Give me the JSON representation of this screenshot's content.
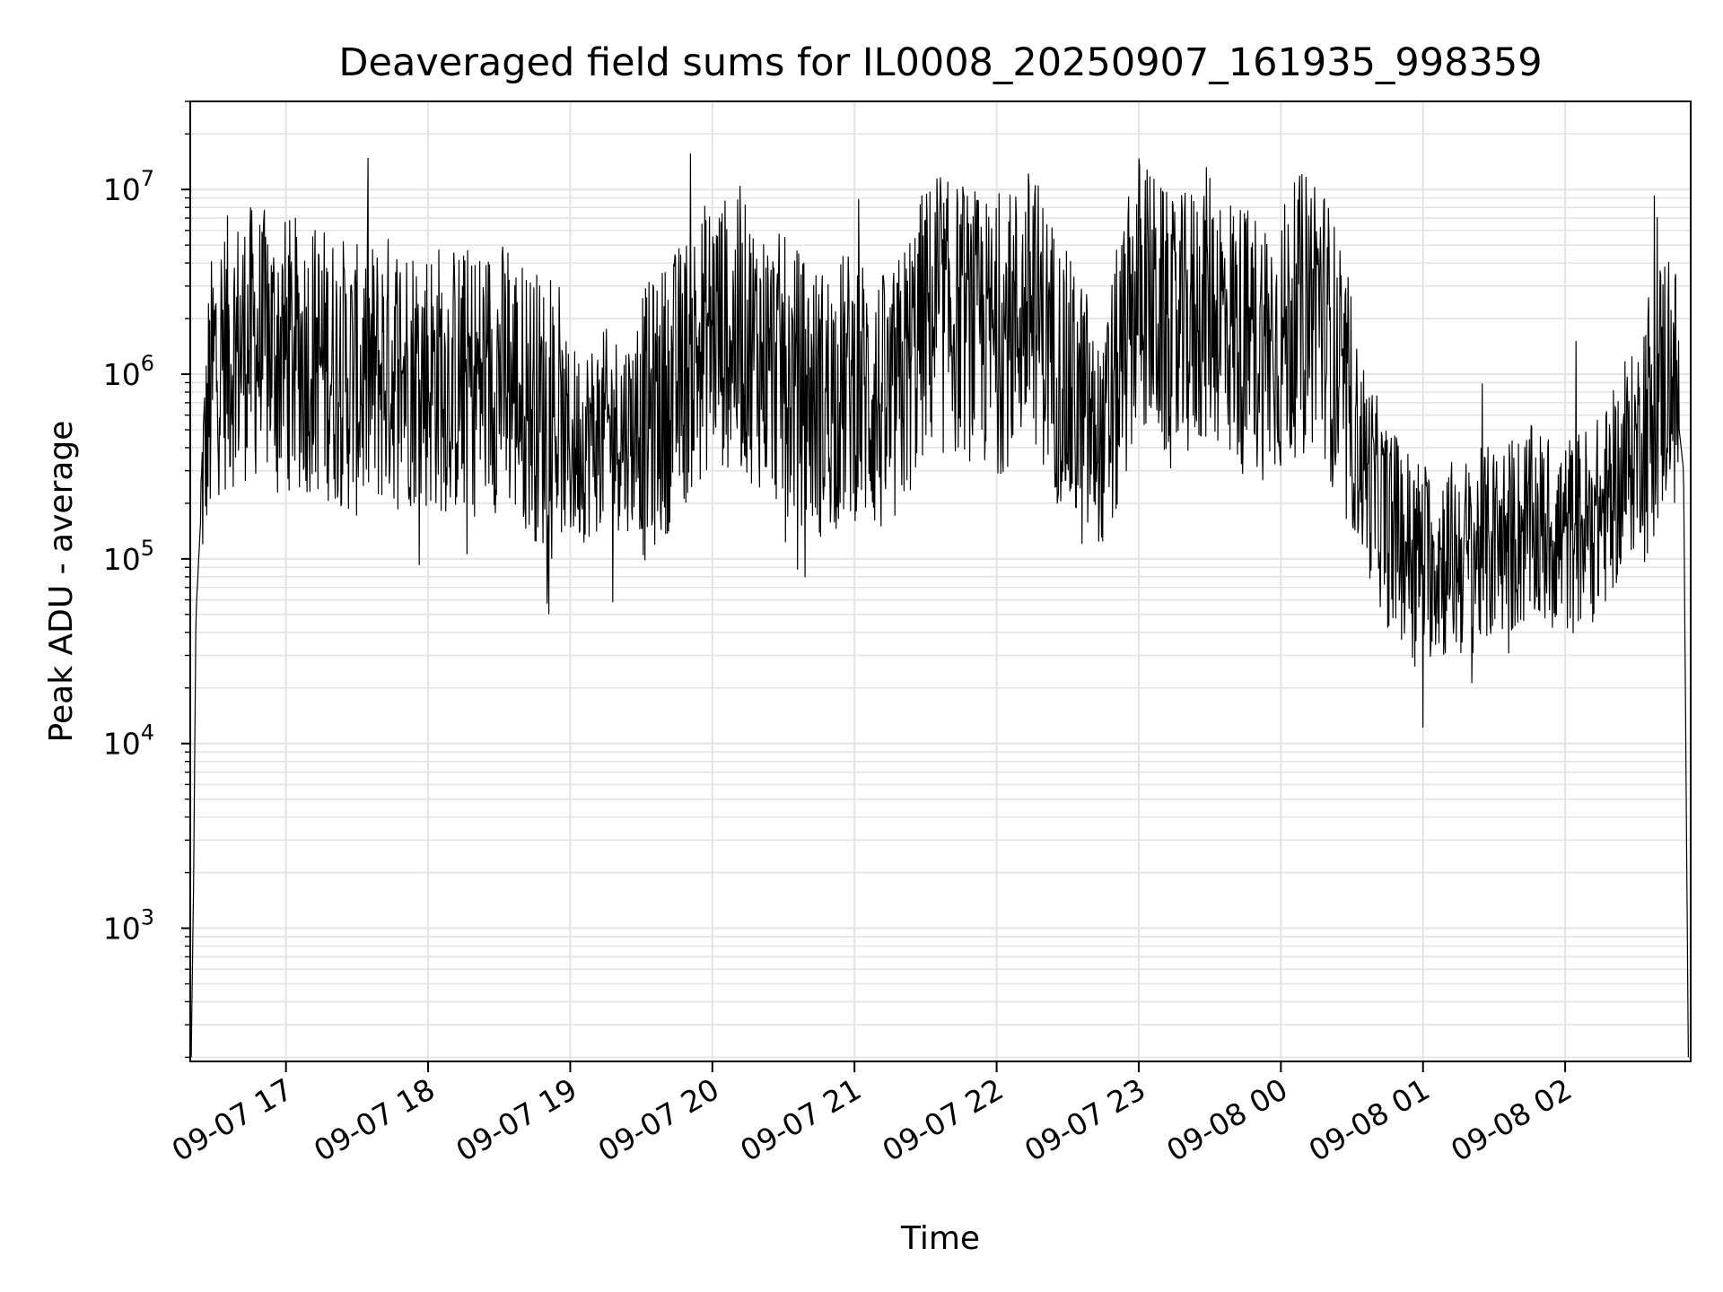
{
  "chart_data": {
    "type": "line",
    "title": "Deaveraged field sums for IL0008_20250907_161935_998359",
    "xlabel": "Time",
    "ylabel": "Peak ADU - average",
    "yscale": "log",
    "ylim": [
      190,
      30000000
    ],
    "xlim": [
      "2025-09-07 16:19:35",
      "2025-09-08 02:53:00"
    ],
    "grid": "on",
    "line_color": "#000000",
    "y_ticks": [
      {
        "value": 1000,
        "base": "10",
        "exp": "3"
      },
      {
        "value": 10000,
        "base": "10",
        "exp": "4"
      },
      {
        "value": 100000,
        "base": "10",
        "exp": "5"
      },
      {
        "value": 1000000,
        "base": "10",
        "exp": "6"
      },
      {
        "value": 10000000,
        "base": "10",
        "exp": "7"
      }
    ],
    "x_ticks": [
      {
        "time": "2025-09-07 17:00",
        "label": "09-07 17"
      },
      {
        "time": "2025-09-07 18:00",
        "label": "09-07 18"
      },
      {
        "time": "2025-09-07 19:00",
        "label": "09-07 19"
      },
      {
        "time": "2025-09-07 20:00",
        "label": "09-07 20"
      },
      {
        "time": "2025-09-07 21:00",
        "label": "09-07 21"
      },
      {
        "time": "2025-09-07 22:00",
        "label": "09-07 22"
      },
      {
        "time": "2025-09-07 23:00",
        "label": "09-07 23"
      },
      {
        "time": "2025-09-08 00:00",
        "label": "09-08 00"
      },
      {
        "time": "2025-09-08 01:00",
        "label": "09-08 01"
      },
      {
        "time": "2025-09-08 02:00",
        "label": "09-08 02"
      }
    ],
    "series": [
      {
        "points": [
          [
            "2025-09-07 16:20",
            200
          ],
          [
            "2025-09-07 16:21",
            1800
          ],
          [
            "2025-09-07 16:22",
            50000
          ],
          [
            "2025-09-07 16:25",
            300000
          ],
          [
            "2025-09-07 16:30",
            1200000
          ],
          [
            "2025-09-07 16:45",
            1500000
          ],
          [
            "2025-09-07 17:00",
            1300000
          ],
          [
            "2025-09-07 17:15",
            1200000
          ],
          [
            "2025-09-07 17:30",
            900000
          ],
          [
            "2025-09-07 17:45",
            1100000
          ],
          [
            "2025-09-07 18:00",
            1000000
          ],
          [
            "2025-09-07 18:15",
            900000
          ],
          [
            "2025-09-07 18:30",
            1000000
          ],
          [
            "2025-09-07 18:45",
            700000
          ],
          [
            "2025-09-07 19:00",
            400000
          ],
          [
            "2025-09-07 19:15",
            500000
          ],
          [
            "2025-09-07 19:30",
            500000
          ],
          [
            "2025-09-07 19:45",
            900000
          ],
          [
            "2025-09-07 20:00",
            1800000
          ],
          [
            "2025-09-07 20:15",
            1500000
          ],
          [
            "2025-09-07 20:30",
            1000000
          ],
          [
            "2025-09-07 20:45",
            700000
          ],
          [
            "2025-09-07 21:00",
            900000
          ],
          [
            "2025-09-07 21:15",
            600000
          ],
          [
            "2025-09-07 21:30",
            2000000
          ],
          [
            "2025-09-07 21:45",
            2000000
          ],
          [
            "2025-09-07 22:00",
            1500000
          ],
          [
            "2025-09-07 22:15",
            2500000
          ],
          [
            "2025-09-07 22:30",
            800000
          ],
          [
            "2025-09-07 22:45",
            400000
          ],
          [
            "2025-09-07 22:55",
            1500000
          ],
          [
            "2025-09-07 23:00",
            3000000
          ],
          [
            "2025-09-07 23:15",
            1500000
          ],
          [
            "2025-09-07 23:30",
            2500000
          ],
          [
            "2025-09-07 23:45",
            1500000
          ],
          [
            "2025-09-08 00:00",
            1500000
          ],
          [
            "2025-09-08 00:15",
            3000000
          ],
          [
            "2025-09-08 00:30",
            500000
          ],
          [
            "2025-09-08 00:45",
            150000
          ],
          [
            "2025-09-08 01:00",
            100000
          ],
          [
            "2025-09-08 01:15",
            100000
          ],
          [
            "2025-09-08 01:30",
            120000
          ],
          [
            "2025-09-08 01:45",
            150000
          ],
          [
            "2025-09-08 02:00",
            130000
          ],
          [
            "2025-09-08 02:15",
            170000
          ],
          [
            "2025-09-08 02:30",
            400000
          ],
          [
            "2025-09-08 02:45",
            1200000
          ],
          [
            "2025-09-08 02:50",
            300000
          ],
          [
            "2025-09-08 02:52",
            200
          ]
        ]
      }
    ]
  }
}
